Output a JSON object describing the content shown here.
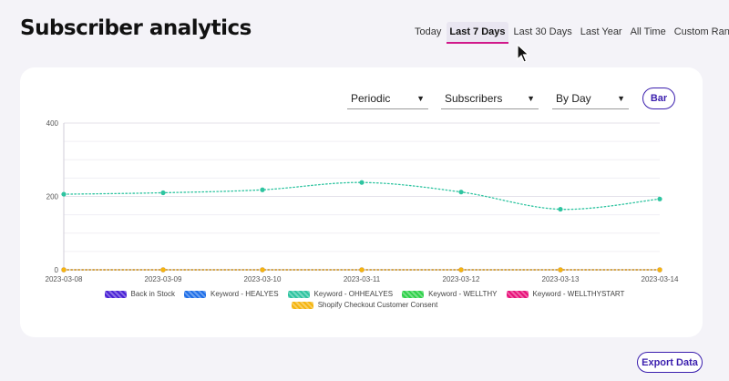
{
  "header": {
    "title": "Subscriber analytics",
    "range_tabs": [
      {
        "label": "Today",
        "active": false
      },
      {
        "label": "Last 7 Days",
        "active": true
      },
      {
        "label": "Last 30 Days",
        "active": false
      },
      {
        "label": "Last Year",
        "active": false
      },
      {
        "label": "All Time",
        "active": false
      },
      {
        "label": "Custom Range",
        "active": false,
        "dropdown": true
      }
    ]
  },
  "controls": {
    "mode": {
      "value": "Periodic",
      "icon": "caret-down-icon"
    },
    "metric": {
      "value": "Subscribers",
      "icon": "caret-down-icon"
    },
    "granularity": {
      "value": "By Day",
      "icon": "caret-down-icon"
    },
    "chart_toggle_label": "Bar"
  },
  "chart_data": {
    "type": "line",
    "title": "",
    "xlabel": "",
    "ylabel": "",
    "ylim": [
      0,
      400
    ],
    "yticks": [
      0,
      200,
      400
    ],
    "categories": [
      "2023-03-08",
      "2023-03-09",
      "2023-03-10",
      "2023-03-11",
      "2023-03-12",
      "2023-03-13",
      "2023-03-14"
    ],
    "series": [
      {
        "name": "Back in Stock",
        "color": "#4a22d6",
        "values": [
          0,
          0,
          0,
          0,
          0,
          0,
          0
        ]
      },
      {
        "name": "Keyword - HEALYES",
        "color": "#1e6fe8",
        "values": [
          0,
          0,
          0,
          0,
          0,
          0,
          0
        ]
      },
      {
        "name": "Keyword - OHHEALYES",
        "color": "#2ec4a0",
        "values": [
          206,
          210,
          218,
          238,
          212,
          165,
          193
        ]
      },
      {
        "name": "Keyword - WELLTHY",
        "color": "#2fd14a",
        "values": [
          0,
          0,
          0,
          0,
          0,
          0,
          0
        ]
      },
      {
        "name": "Keyword - WELLTHYSTART",
        "color": "#e8127a",
        "values": [
          0,
          0,
          0,
          0,
          0,
          0,
          0
        ]
      },
      {
        "name": "Shopify Checkout Customer Consent",
        "color": "#f5b50f",
        "values": [
          0,
          0,
          0,
          0,
          0,
          0,
          0
        ]
      }
    ],
    "grid": true,
    "legend_position": "bottom"
  },
  "footer": {
    "export_label": "Export Data"
  },
  "colors": {
    "accent": "#3b1fae",
    "active_tab_underline": "#d1188a",
    "card_background": "#ffffff",
    "page_background": "#f4f3f8"
  }
}
